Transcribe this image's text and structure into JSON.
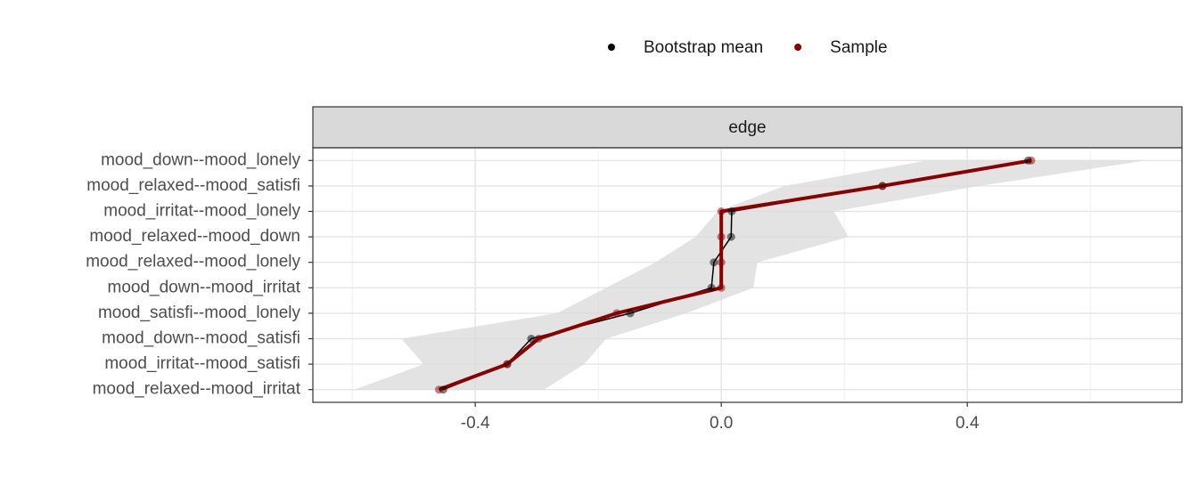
{
  "chart_data": {
    "type": "line",
    "orientation": "horizontal",
    "strip": "edge",
    "categories": [
      "mood_down--mood_lonely",
      "mood_relaxed--mood_satisfi",
      "mood_irritat--mood_lonely",
      "mood_relaxed--mood_down",
      "mood_relaxed--mood_lonely",
      "mood_down--mood_irritat",
      "mood_satisfi--mood_lonely",
      "mood_down--mood_satisfi",
      "mood_irritat--mood_satisfi",
      "mood_relaxed--mood_irritat"
    ],
    "series": [
      {
        "name": "Bootstrap mean",
        "color": "#000000",
        "values": [
          0.499,
          0.262,
          0.017,
          0.016,
          -0.012,
          -0.016,
          -0.148,
          -0.309,
          -0.348,
          -0.452
        ]
      },
      {
        "name": "Sample",
        "color": "#8b0000",
        "values": [
          0.504,
          0.262,
          0,
          0,
          0,
          0,
          -0.17,
          -0.297,
          -0.348,
          -0.459
        ]
      }
    ],
    "band": {
      "color": "#d9d9d9",
      "lower": [
        0.335,
        0.103,
        -0.006,
        -0.042,
        -0.107,
        -0.187,
        -0.267,
        -0.52,
        -0.484,
        -0.596
      ],
      "upper": [
        0.69,
        0.42,
        0.183,
        0.207,
        0.059,
        0.052,
        -0.057,
        -0.187,
        -0.223,
        -0.288
      ]
    },
    "xlim": [
      -0.664,
      0.749
    ],
    "xticks": [
      -0.4,
      {
        "value": 0,
        "label": "0.0"
      },
      0.4
    ],
    "minor_xticks": [
      -0.6,
      -0.2,
      0.2,
      0.6
    ],
    "grid": true,
    "legend": "top"
  }
}
